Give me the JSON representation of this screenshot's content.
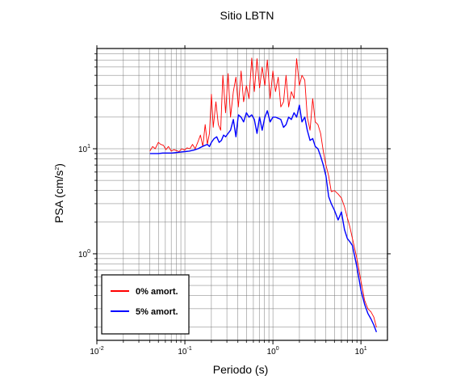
{
  "chart_data": {
    "type": "line",
    "title": "Sitio LBTN",
    "xlabel": "Periodo (s)",
    "ylabel_prefix": "PSA (cm/s",
    "ylabel_sup": "2",
    "ylabel_suffix": ")",
    "x_scale": "log",
    "y_scale": "log",
    "xlim": [
      0.01,
      20
    ],
    "ylim": [
      0.15,
      90
    ],
    "grid": true,
    "legend_position": "bottom-left",
    "x_ticks": [
      {
        "base": "10",
        "exp": "-2",
        "value": 0.01
      },
      {
        "base": "10",
        "exp": "-1",
        "value": 0.1
      },
      {
        "base": "10",
        "exp": "0",
        "value": 1
      },
      {
        "base": "10",
        "exp": "1",
        "value": 10
      }
    ],
    "y_ticks": [
      {
        "base": "10",
        "exp": "0",
        "value": 1
      },
      {
        "base": "10",
        "exp": "1",
        "value": 10
      }
    ],
    "series": [
      {
        "name": "0% amort.",
        "color": "#ff0000",
        "x": [
          0.04,
          0.043,
          0.046,
          0.05,
          0.053,
          0.057,
          0.061,
          0.065,
          0.07,
          0.075,
          0.08,
          0.086,
          0.092,
          0.099,
          0.106,
          0.114,
          0.122,
          0.131,
          0.14,
          0.15,
          0.16,
          0.17,
          0.18,
          0.19,
          0.2,
          0.21,
          0.225,
          0.24,
          0.255,
          0.27,
          0.29,
          0.31,
          0.33,
          0.355,
          0.38,
          0.405,
          0.435,
          0.465,
          0.5,
          0.535,
          0.575,
          0.615,
          0.66,
          0.705,
          0.755,
          0.81,
          0.865,
          0.93,
          1.0,
          1.07,
          1.15,
          1.23,
          1.32,
          1.41,
          1.51,
          1.62,
          1.74,
          1.86,
          2.0,
          2.14,
          2.3,
          2.46,
          2.64,
          2.83,
          3.03,
          3.25,
          3.48,
          3.73,
          4.0,
          4.3,
          4.6,
          5.0,
          5.5,
          6.0,
          6.5,
          7.0,
          7.5,
          8.0,
          9.0,
          10.0,
          11.0,
          12.0,
          13.0,
          14.0,
          15.0
        ],
        "y": [
          9.5,
          10.5,
          10.0,
          11.5,
          11.0,
          10.8,
          9.8,
          10.5,
          9.5,
          9.8,
          9.6,
          9.4,
          10.0,
          9.7,
          10.2,
          10.0,
          11.0,
          10.0,
          11.5,
          13.5,
          10.5,
          17.0,
          11.0,
          14.0,
          33.0,
          16.0,
          28.0,
          17.0,
          15.0,
          50.0,
          22.0,
          52.0,
          20.0,
          35.0,
          48.0,
          25.0,
          55.0,
          28.0,
          40.0,
          30.0,
          73.0,
          35.0,
          72.0,
          38.0,
          60.0,
          40.0,
          70.0,
          30.0,
          55.0,
          35.0,
          48.0,
          25.0,
          28.0,
          50.0,
          25.0,
          35.0,
          30.0,
          72.0,
          40.0,
          50.0,
          45.0,
          20.0,
          15.0,
          30.0,
          18.0,
          17.0,
          14.0,
          9.5,
          7.0,
          5.5,
          3.9,
          4.0,
          3.7,
          3.4,
          2.8,
          2.2,
          1.8,
          1.4,
          0.9,
          0.55,
          0.36,
          0.3,
          0.28,
          0.25,
          0.2
        ]
      },
      {
        "name": "5% amort.",
        "color": "#0000ff",
        "x": [
          0.04,
          0.045,
          0.05,
          0.056,
          0.063,
          0.071,
          0.08,
          0.09,
          0.1,
          0.112,
          0.126,
          0.141,
          0.158,
          0.17,
          0.18,
          0.19,
          0.2,
          0.215,
          0.23,
          0.245,
          0.26,
          0.275,
          0.29,
          0.31,
          0.33,
          0.355,
          0.38,
          0.405,
          0.435,
          0.465,
          0.5,
          0.535,
          0.575,
          0.615,
          0.66,
          0.705,
          0.755,
          0.81,
          0.865,
          0.93,
          1.0,
          1.07,
          1.15,
          1.23,
          1.32,
          1.41,
          1.51,
          1.62,
          1.74,
          1.86,
          2.0,
          2.14,
          2.3,
          2.46,
          2.64,
          2.83,
          3.03,
          3.25,
          3.48,
          3.73,
          4.0,
          4.3,
          4.6,
          5.0,
          5.5,
          6.0,
          6.5,
          7.0,
          7.5,
          8.0,
          9.0,
          10.0,
          11.0,
          12.0,
          13.0,
          14.0,
          15.0
        ],
        "y": [
          9.0,
          9.0,
          9.0,
          9.1,
          9.1,
          9.1,
          9.2,
          9.3,
          9.4,
          9.5,
          9.7,
          10.0,
          10.5,
          10.8,
          11.0,
          10.5,
          11.5,
          12.5,
          13.0,
          11.5,
          12.0,
          13.5,
          13.0,
          14.0,
          15.0,
          19.0,
          13.0,
          21.0,
          20.0,
          18.0,
          22.0,
          20.0,
          21.0,
          19.0,
          14.0,
          20.0,
          15.0,
          20.0,
          23.0,
          18.0,
          20.0,
          20.0,
          19.5,
          19.0,
          16.0,
          17.0,
          20.0,
          19.0,
          22.0,
          20.0,
          26.0,
          18.0,
          20.0,
          15.0,
          12.0,
          12.5,
          10.5,
          10.0,
          8.5,
          7.0,
          5.5,
          3.5,
          3.0,
          2.6,
          2.1,
          2.5,
          1.7,
          1.4,
          1.3,
          1.2,
          0.75,
          0.45,
          0.33,
          0.27,
          0.24,
          0.21,
          0.18
        ]
      }
    ]
  }
}
